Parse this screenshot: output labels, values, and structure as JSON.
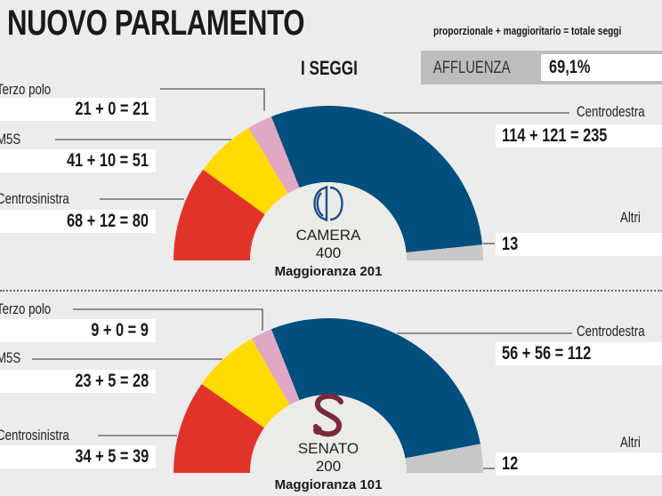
{
  "header": {
    "title": "NUOVO PARLAMENTO",
    "legend": "proporzionale + maggioritario = totale seggi",
    "section_title": "I SEGGI",
    "affluenza_label": "AFFLUENZA",
    "affluenza_value": "69,1%"
  },
  "colors": {
    "Centrosinistra": "#e2332b",
    "M5S": "#ffdb00",
    "Terzo polo": "#e0a8c4",
    "Centrodestra": "#004f7e",
    "Altri": "#c8c8ca",
    "camera_logo": "#1f4f8a",
    "senato_logo": "#7a2a3a"
  },
  "chart_data": [
    {
      "type": "pie",
      "shape": "hemicycle",
      "chamber": "CAMERA",
      "total": "400",
      "majority": "Maggioranza 201",
      "logo": "camera-logo",
      "categories": [
        "Centrosinistra",
        "M5S",
        "Terzo polo",
        "Centrodestra",
        "Altri"
      ],
      "values": [
        80,
        51,
        21,
        235,
        13
      ],
      "labels": [
        "68 + 12 = 80",
        "41 + 10 = 51",
        "21 + 0 = 21",
        "114 + 121 = 235",
        "13"
      ]
    },
    {
      "type": "pie",
      "shape": "hemicycle",
      "chamber": "SENATO",
      "total": "200",
      "majority": "Maggioranza 101",
      "logo": "senato-logo",
      "categories": [
        "Centrosinistra",
        "M5S",
        "Terzo polo",
        "Centrodestra",
        "Altri"
      ],
      "values": [
        39,
        28,
        9,
        112,
        12
      ],
      "labels": [
        "34 + 5 = 39",
        "23 + 5 = 28",
        "9 + 0 = 9",
        "56 + 56 = 112",
        "12"
      ]
    }
  ]
}
